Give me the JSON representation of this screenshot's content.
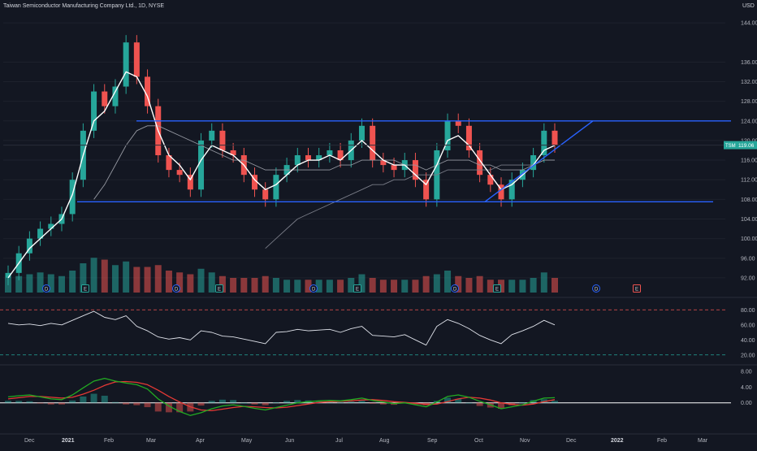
{
  "header": {
    "title": "Taiwan Semiconductor Manufacturing Company Ltd., 1D, NYSE",
    "currency": "USD"
  },
  "colors": {
    "background": "#131722",
    "up": "#26a69a",
    "down": "#ef5350",
    "ema": "#ffffff",
    "trendline": "#2962ff",
    "rsi_line": "#e0e3eb",
    "macd": "#22ab22",
    "signal": "#e53935",
    "rsi_upper_band": "#ef5350",
    "rsi_lower_band": "#26a69a"
  },
  "chart_data": [
    {
      "type": "candlestick",
      "panel": "price",
      "ylim": [
        89,
        146
      ],
      "y_ticks": [
        "144.00",
        "136.00",
        "132.00",
        "128.00",
        "124.00",
        "120.00",
        "116.00",
        "112.00",
        "108.00",
        "104.00",
        "100.00",
        "96.00",
        "92.00"
      ],
      "x_tick_labels": [
        "Dec",
        "2021",
        "Feb",
        "Mar",
        "Apr",
        "May",
        "Jun",
        "Jul",
        "Aug",
        "Sep",
        "Oct",
        "Nov",
        "Dec",
        "2022",
        "Feb",
        "Mar"
      ],
      "last_price": {
        "symbol": "TSM",
        "value": "119.06"
      },
      "series": [
        {
          "name": "price",
          "x": [
            "11-23",
            "12-01",
            "12-08",
            "12-15",
            "12-22",
            "12-29",
            "01-05",
            "01-12",
            "01-19",
            "01-26",
            "02-02",
            "02-09",
            "02-16",
            "02-23",
            "03-02",
            "03-09",
            "03-16",
            "03-23",
            "03-30",
            "04-06",
            "04-13",
            "04-20",
            "04-27",
            "05-04",
            "05-11",
            "05-18",
            "05-25",
            "06-01",
            "06-08",
            "06-15",
            "06-22",
            "06-29",
            "07-06",
            "07-13",
            "07-20",
            "07-27",
            "08-03",
            "08-10",
            "08-17",
            "08-24",
            "08-31",
            "09-07",
            "09-14",
            "09-21",
            "09-28",
            "10-05",
            "10-12",
            "10-19",
            "10-26",
            "11-02",
            "11-09",
            "11-16"
          ],
          "values": [
            93,
            97,
            100,
            102,
            103,
            105,
            112,
            122,
            130,
            127,
            131,
            140,
            133,
            127,
            117,
            114,
            113,
            110,
            120,
            122,
            118,
            117,
            113,
            110,
            108,
            113,
            115,
            117,
            116,
            117,
            118,
            116,
            120,
            123,
            116,
            115,
            114,
            116,
            112,
            108,
            118,
            124,
            123,
            118,
            113,
            111,
            108,
            112,
            114,
            117,
            122,
            119
          ]
        },
        {
          "name": "EMA",
          "values": [
            92,
            95,
            98,
            100,
            102,
            104,
            109,
            117,
            124,
            126,
            130,
            134,
            133,
            129,
            122,
            117,
            115,
            112,
            116,
            119,
            118,
            117,
            115,
            112,
            110,
            111,
            113,
            115,
            116,
            116,
            117,
            116,
            118,
            120,
            118,
            116,
            115,
            115,
            113,
            111,
            115,
            120,
            121,
            119,
            116,
            113,
            110,
            111,
            113,
            115,
            118,
            119
          ]
        },
        {
          "name": "SMA50",
          "values": [
            null,
            null,
            null,
            null,
            null,
            null,
            null,
            null,
            108,
            111,
            115,
            119,
            122,
            123,
            123,
            122,
            121,
            120,
            119,
            118,
            117,
            116,
            116,
            115,
            114,
            114,
            114,
            114,
            114,
            114,
            114,
            115,
            115,
            116,
            116,
            116,
            116,
            115,
            115,
            114,
            115,
            116,
            116,
            116,
            115,
            115,
            114,
            114,
            114,
            115,
            116,
            116
          ]
        },
        {
          "name": "SMA200",
          "values": [
            null,
            null,
            null,
            null,
            null,
            null,
            null,
            null,
            null,
            null,
            null,
            null,
            null,
            null,
            null,
            null,
            null,
            null,
            null,
            null,
            null,
            null,
            null,
            null,
            98,
            100,
            102,
            104,
            105,
            106,
            107,
            108,
            109,
            110,
            111,
            111,
            112,
            112,
            113,
            113,
            113,
            114,
            114,
            114,
            114,
            114,
            115,
            115,
            115,
            115,
            116,
            116
          ]
        }
      ],
      "volume": [
        0.4,
        0.45,
        0.5,
        0.55,
        0.5,
        0.45,
        0.6,
        0.8,
        0.95,
        0.9,
        0.75,
        0.85,
        0.7,
        0.7,
        0.75,
        0.6,
        0.55,
        0.5,
        0.65,
        0.55,
        0.45,
        0.4,
        0.4,
        0.4,
        0.45,
        0.4,
        0.35,
        0.35,
        0.35,
        0.35,
        0.35,
        0.35,
        0.4,
        0.5,
        0.4,
        0.35,
        0.35,
        0.35,
        0.35,
        0.45,
        0.5,
        0.6,
        0.45,
        0.4,
        0.45,
        0.35,
        0.35,
        0.35,
        0.35,
        0.4,
        0.55,
        0.4
      ],
      "horizontal_levels": [
        124,
        107.5
      ],
      "event_markers": [
        {
          "label": "D",
          "x": "12-15"
        },
        {
          "label": "E",
          "x": "01-12"
        },
        {
          "label": "D",
          "x": "03-09"
        },
        {
          "label": "E",
          "x": "04-13"
        },
        {
          "label": "D",
          "x": "06-08"
        },
        {
          "label": "E",
          "x": "07-13"
        },
        {
          "label": "D",
          "x": "09-07"
        },
        {
          "label": "E",
          "x": "10-12"
        },
        {
          "label": "D",
          "x": "12-07"
        },
        {
          "label": "E",
          "x": "01-11"
        }
      ]
    },
    {
      "type": "line",
      "panel": "rsi",
      "ylim": [
        10,
        90
      ],
      "y_ticks": [
        "80.00",
        "60.00",
        "40.00",
        "20.00"
      ],
      "bands": [
        80,
        20
      ],
      "series": [
        {
          "name": "RSI",
          "values": [
            62,
            60,
            61,
            59,
            62,
            60,
            66,
            72,
            78,
            70,
            67,
            72,
            58,
            52,
            44,
            41,
            43,
            40,
            52,
            50,
            45,
            44,
            41,
            38,
            35,
            50,
            51,
            54,
            52,
            53,
            54,
            50,
            55,
            58,
            46,
            45,
            44,
            47,
            40,
            33,
            58,
            67,
            62,
            55,
            46,
            40,
            35,
            47,
            52,
            58,
            66,
            60
          ]
        }
      ]
    },
    {
      "type": "line",
      "panel": "macd",
      "ylim": [
        -5,
        9
      ],
      "y_ticks": [
        "8.00",
        "4.00",
        "0.00"
      ],
      "series": [
        {
          "name": "MACD",
          "values": [
            1.5,
            1.8,
            2.0,
            1.5,
            1.0,
            0.8,
            2.0,
            3.8,
            5.5,
            6.2,
            5.5,
            5.0,
            4.6,
            3.5,
            1.0,
            -0.8,
            -2.2,
            -3.2,
            -2.5,
            -1.5,
            -0.8,
            -0.5,
            -0.9,
            -1.4,
            -1.8,
            -1.2,
            -0.6,
            0,
            0.3,
            0.5,
            0.6,
            0.5,
            0.8,
            1.2,
            0.6,
            0.2,
            -0.2,
            0,
            -0.5,
            -1.0,
            0.2,
            1.6,
            2.0,
            1.4,
            0.4,
            -0.5,
            -1.5,
            -1.0,
            -0.5,
            0.4,
            1.2,
            1.3
          ]
        },
        {
          "name": "Signal",
          "values": [
            1.0,
            1.3,
            1.6,
            1.6,
            1.4,
            1.2,
            1.4,
            2.2,
            3.2,
            4.4,
            5.3,
            5.4,
            5.2,
            4.6,
            3.2,
            1.6,
            0.2,
            -1.0,
            -1.8,
            -2.0,
            -1.6,
            -1.2,
            -0.9,
            -1.0,
            -1.2,
            -1.3,
            -1.1,
            -0.7,
            -0.3,
            0.1,
            0.3,
            0.4,
            0.5,
            0.7,
            0.8,
            0.6,
            0.3,
            0.1,
            -0.1,
            -0.4,
            -0.3,
            0.3,
            1.0,
            1.4,
            1.2,
            0.7,
            0,
            -0.4,
            -0.6,
            -0.3,
            0.3,
            0.8
          ]
        }
      ]
    }
  ]
}
